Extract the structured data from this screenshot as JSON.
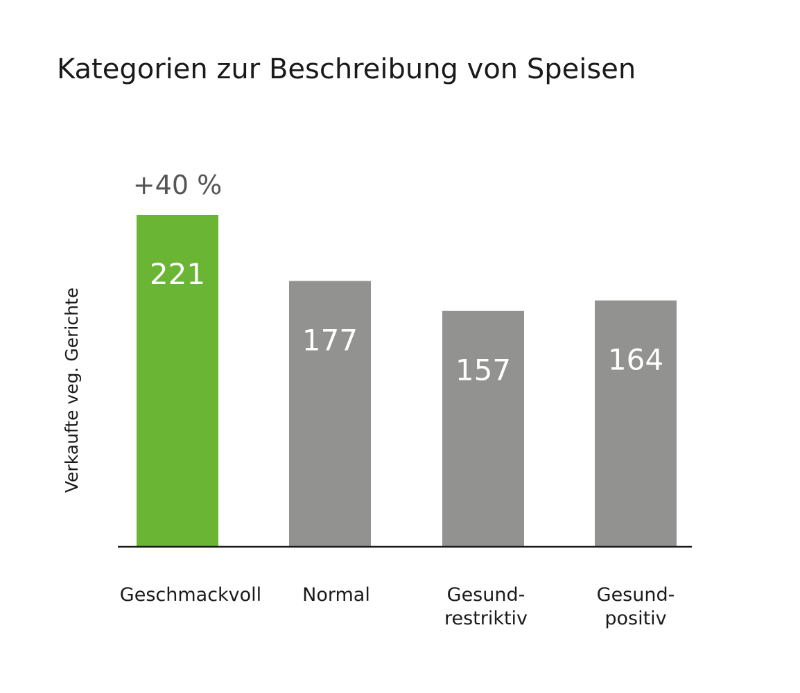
{
  "chart_data": {
    "type": "bar",
    "title": "Kategorien zur Beschreibung von Speisen",
    "xlabel": "",
    "ylabel": "Verkaufte veg. Gerichte",
    "categories": [
      "Geschmackvoll",
      "Normal",
      "Gesund-restriktiv",
      "Gesund-positiv"
    ],
    "category_lines": [
      [
        "Geschmackvoll"
      ],
      [
        "Normal"
      ],
      [
        "Gesund-",
        "restriktiv"
      ],
      [
        "Gesund-",
        "positiv"
      ]
    ],
    "values": [
      221,
      177,
      157,
      164
    ],
    "value_labels": [
      "221",
      "177",
      "157",
      "164"
    ],
    "ylim": [
      0,
      221
    ],
    "grid": false,
    "annotations": [
      {
        "category": "Geschmackvoll",
        "text": "+40 %"
      }
    ],
    "colors": {
      "highlight": "#6ab534",
      "bar": "#929391",
      "axis": "#1a1a1a"
    },
    "highlight_index": 0
  }
}
